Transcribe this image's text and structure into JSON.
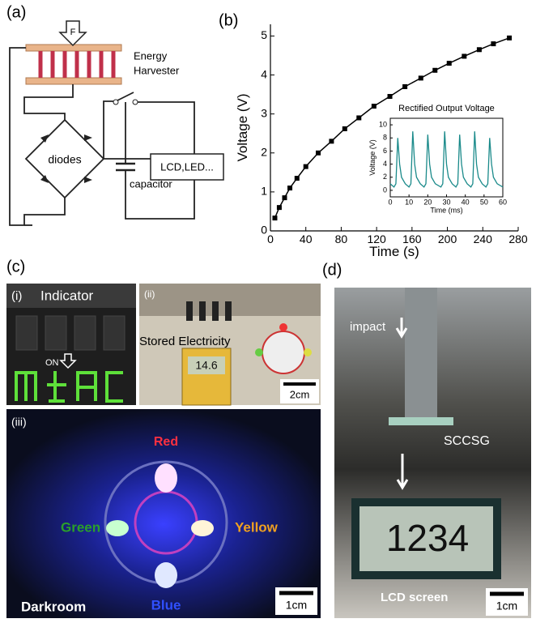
{
  "panel_labels": [
    "(a)",
    "(b)",
    "(c)",
    "(d)"
  ],
  "circuit": {
    "force": "F",
    "harvester": [
      "Energy",
      "Harvester"
    ],
    "diodes": "diodes",
    "capacitor": "capacitor",
    "load": "LCD,LED..."
  },
  "photos": {
    "c_i": {
      "label": "(i)",
      "title": "Indicator",
      "arrow_text": "ON"
    },
    "c_ii": {
      "label": "(ii)",
      "title": "Stored Electricity",
      "meter": "14.6",
      "scale": "2cm"
    },
    "c_iii": {
      "label": "(iii)",
      "red": "Red",
      "green": "Green",
      "yellow": "Yellow",
      "blue": "Blue",
      "room": "Darkroom",
      "scale": "1cm"
    },
    "d": {
      "impact": "impact",
      "device": "SCCSG",
      "digits": "1234",
      "screen": "LCD screen",
      "scale": "1cm"
    }
  },
  "chart_data": [
    {
      "type": "line",
      "xlabel": "Time (s)",
      "ylabel": "Voltage (V)",
      "color": "#000000",
      "markers": true,
      "x": [
        5,
        10,
        16,
        22,
        30,
        40,
        54,
        69,
        84,
        100,
        117,
        135,
        152,
        170,
        186,
        202,
        219,
        236,
        252,
        270
      ],
      "values": [
        0.33,
        0.6,
        0.85,
        1.1,
        1.35,
        1.65,
        2.0,
        2.3,
        2.62,
        2.9,
        3.2,
        3.45,
        3.7,
        3.92,
        4.12,
        4.3,
        4.48,
        4.65,
        4.8,
        4.95
      ],
      "xlim": [
        0,
        280
      ],
      "xticks": [
        0,
        40,
        80,
        120,
        160,
        200,
        240,
        280
      ],
      "ylim": [
        0,
        5.3
      ],
      "yticks": [
        0,
        1,
        2,
        3,
        4,
        5
      ]
    },
    {
      "type": "line",
      "title": "Rectified Output Voltage",
      "xlabel": "Time (ms)",
      "ylabel": "Voltage (V)",
      "color": "#1a8a8a",
      "markers": false,
      "x": [
        0,
        2,
        3,
        4,
        5,
        6,
        8,
        10,
        11,
        12,
        13,
        14,
        16,
        18,
        19,
        20,
        21,
        22,
        24,
        27,
        28,
        29,
        30,
        31,
        33,
        35,
        36,
        37,
        38,
        39,
        41,
        43,
        44,
        45,
        46,
        47,
        49,
        51,
        52,
        53,
        54,
        55,
        57,
        60
      ],
      "values": [
        1,
        0.5,
        1,
        8,
        4,
        2,
        1,
        0.5,
        1,
        9,
        4,
        2,
        1,
        0.5,
        1,
        8.5,
        4,
        2,
        1,
        0.5,
        1,
        9,
        4,
        2,
        1,
        0.5,
        1,
        8.5,
        4,
        2,
        1,
        0.5,
        1,
        9,
        4,
        2,
        1,
        0.5,
        1,
        8,
        4,
        2,
        1,
        0.5
      ],
      "xlim": [
        0,
        60
      ],
      "xticks": [
        0,
        10,
        20,
        30,
        40,
        50,
        60
      ],
      "ylim": [
        -1,
        11
      ],
      "yticks": [
        0,
        2,
        4,
        6,
        8,
        10
      ]
    }
  ]
}
